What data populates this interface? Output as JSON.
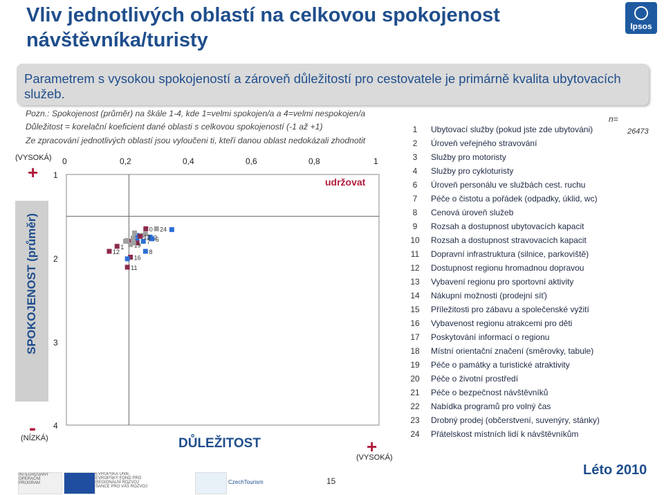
{
  "title": "Vliv jednotlivých oblastí na celkovou spokojenost návštěvníka/turisty",
  "logo_text": "Ipsos",
  "banner_text": "Parametrem s vysokou spokojeností a zároveň důležitostí pro cestovatele je primárně kvalita ubytovacích služeb.",
  "notes": [
    "Pozn.: Spokojenost (průměr) na škále 1-4, kde 1=velmi spokojen/a a 4=velmi nespokojen/a",
    "Důležitost = korelační koeficient dané oblasti s celkovou spokojeností (-1 až +1)",
    "Ze zpracování jednotlivých oblastí jsou vyloučeni ti, kteří danou oblast nedokázali zhodnotit"
  ],
  "n_label": "n=",
  "n_value": "26473",
  "y_axis_title": "SPOKOJENOST (průměr)",
  "x_axis_title": "DŮLEŽITOST",
  "y_top_label": "(VYSOKÁ)",
  "y_bottom_label": "(NÍZKÁ)",
  "x_right_label": "(VYSOKÁ)",
  "plus_sign": "+",
  "minus_sign": "-",
  "quadrant_label": "udržovat",
  "page_number": "15",
  "season": "Léto 2010",
  "footer_logos": [
    "INTEGROVANÝ OPERAČNÍ PROGRAM",
    "EVROPSKÁ UNIE EVROPSKÝ FOND PRO REGIONÁLNÍ ROZVOJ ŠANCE PRO VÁŠ ROZVOJ",
    "CzechTourism"
  ],
  "colors": {
    "title": "#1f4e8c",
    "accent": "#b01c3c",
    "series_blue": "#2b6fd6",
    "series_maroon": "#8c2a4d",
    "series_gray": "#a0a0a0",
    "banner": "#dadada"
  },
  "chart_data": {
    "type": "scatter",
    "xlabel": "DŮLEŽITOST",
    "ylabel": "SPOKOJENOST (průměr)",
    "xlim": [
      0,
      1
    ],
    "ylim": [
      1,
      4
    ],
    "y_inverted": true,
    "x_ticks": [
      "0",
      "0,2",
      "0,4",
      "0,6",
      "0,8",
      "1"
    ],
    "y_ticks": [
      "1",
      "2",
      "3",
      "4"
    ],
    "midlines": {
      "x": 0.2,
      "y": 1.5
    },
    "points": [
      {
        "id": 1,
        "x": 0.337,
        "y": 1.66,
        "color": "blue",
        "label": ""
      },
      {
        "id": 2,
        "x": 0.268,
        "y": 1.75,
        "color": "blue",
        "label": "2"
      },
      {
        "id": 3,
        "x": 0.253,
        "y": 1.71,
        "color": "gray",
        "label": ""
      },
      {
        "id": 4,
        "x": 0.226,
        "y": 1.73,
        "color": "blue",
        "label": ""
      },
      {
        "id": 5,
        "x": 0.243,
        "y": 1.73,
        "color": "gray",
        "label": ""
      },
      {
        "id": 6,
        "x": 0.274,
        "y": 1.77,
        "color": "blue",
        "label": "6"
      },
      {
        "id": 7,
        "x": 0.246,
        "y": 1.8,
        "color": "blue",
        "label": "7"
      },
      {
        "id": 8,
        "x": 0.253,
        "y": 1.92,
        "color": "blue",
        "label": "8"
      },
      {
        "id": 9,
        "x": 0.226,
        "y": 1.79,
        "color": "blue",
        "label": ""
      },
      {
        "id": 10,
        "x": 0.254,
        "y": 1.65,
        "color": "maroon",
        "label": "0"
      },
      {
        "id": 11,
        "x": 0.195,
        "y": 2.11,
        "color": "maroon",
        "label": "11"
      },
      {
        "id": 12,
        "x": 0.137,
        "y": 1.92,
        "color": "maroon",
        "label": "12"
      },
      {
        "id": 13,
        "x": 0.236,
        "y": 1.74,
        "color": "maroon",
        "label": "13"
      },
      {
        "id": 14,
        "x": 0.199,
        "y": 1.8,
        "color": "maroon",
        "label": ""
      },
      {
        "id": 15,
        "x": 0.226,
        "y": 1.82,
        "color": "maroon",
        "label": ""
      },
      {
        "id": 16,
        "x": 0.205,
        "y": 1.99,
        "color": "maroon",
        "label": "16"
      },
      {
        "id": 17,
        "x": 0.194,
        "y": 1.79,
        "color": "gray",
        "label": "1"
      },
      {
        "id": 18,
        "x": 0.213,
        "y": 1.76,
        "color": "gray",
        "label": ""
      },
      {
        "id": 19,
        "x": 0.205,
        "y": 1.84,
        "color": "gray",
        "label": "19"
      },
      {
        "id": 20,
        "x": 0.215,
        "y": 1.82,
        "color": "gray",
        "label": ""
      },
      {
        "id": 21,
        "x": 0.162,
        "y": 1.86,
        "color": "maroon",
        "label": "1"
      },
      {
        "id": 22,
        "x": 0.218,
        "y": 1.7,
        "color": "gray",
        "label": ""
      },
      {
        "id": 23,
        "x": 0.189,
        "y": 1.8,
        "color": "gray",
        "label": ""
      },
      {
        "id": 24,
        "x": 0.288,
        "y": 1.65,
        "color": "gray",
        "label": "24"
      },
      {
        "id": 25,
        "x": 0.195,
        "y": 2.01,
        "color": "blue",
        "label": ""
      }
    ]
  },
  "legend": [
    {
      "num": "1",
      "text": "Ubytovací služby (pokud jste zde ubytováni)"
    },
    {
      "num": "2",
      "text": "Úroveň veřejného stravování"
    },
    {
      "num": "3",
      "text": "Služby pro motoristy"
    },
    {
      "num": "4",
      "text": "Služby pro cykloturisty"
    },
    {
      "num": "6",
      "text": "Úroveň personálu ve službách cest. ruchu"
    },
    {
      "num": "7",
      "text": "Péče o čistotu a pořádek (odpadky, úklid, wc)"
    },
    {
      "num": "8",
      "text": "Cenová úroveň služeb"
    },
    {
      "num": "9",
      "text": "Rozsah a dostupnost ubytovacích kapacit"
    },
    {
      "num": "10",
      "text": "Rozsah a dostupnost stravovacích kapacit"
    },
    {
      "num": "11",
      "text": "Dopravní infrastruktura (silnice, parkoviště)"
    },
    {
      "num": "12",
      "text": "Dostupnost regionu hromadnou dopravou"
    },
    {
      "num": "13",
      "text": "Vybavení regionu pro sportovní aktivity"
    },
    {
      "num": "14",
      "text": "Nákupní možnosti (prodejní síť)"
    },
    {
      "num": "15",
      "text": "Příležitosti pro zábavu a společenské vyžití"
    },
    {
      "num": "16",
      "text": "Vybavenost regionu atrakcemi pro děti"
    },
    {
      "num": "17",
      "text": "Poskytování informací o regionu"
    },
    {
      "num": "18",
      "text": "Místní orientační značení (směrovky, tabule)"
    },
    {
      "num": "19",
      "text": "Péče o památky a turistické atraktivity"
    },
    {
      "num": "20",
      "text": "Péče o životní prostředí"
    },
    {
      "num": "21",
      "text": "Péče o bezpečnost návštěvníků"
    },
    {
      "num": "22",
      "text": "Nabídka programů pro volný čas"
    },
    {
      "num": "23",
      "text": "Drobný prodej (občerstvení, suvenýry, stánky)"
    },
    {
      "num": "24",
      "text": "Přátelskost místních lidí k návštěvníkům"
    }
  ]
}
